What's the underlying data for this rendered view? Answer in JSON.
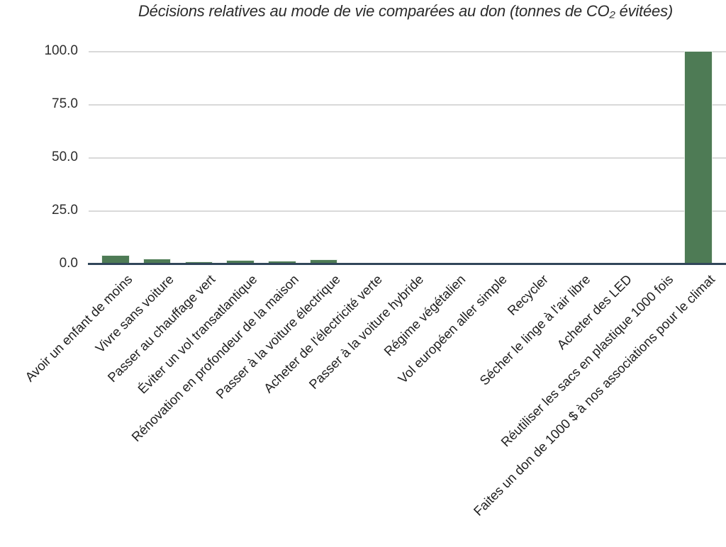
{
  "title": "Décisions relatives au mode de vie comparées au don (tonnes de CO₂ évitées)",
  "colors": {
    "bar": "#4e7b55",
    "bar_outline": "#e8f0e8",
    "axis_line": "#31465a",
    "gridline": "#d9d9d9",
    "title_text": "#2b2b2b",
    "tick_text": "#2e2e2e",
    "label_text": "#1e1e1e",
    "background": "#ffffff"
  },
  "y_axis": {
    "ticks": [
      {
        "label": "100.0",
        "value": 100
      },
      {
        "label": "75.0",
        "value": 75
      },
      {
        "label": "50.0",
        "value": 50
      },
      {
        "label": "25.0",
        "value": 25
      },
      {
        "label": "0.0",
        "value": 0
      }
    ]
  },
  "chart_data": {
    "type": "bar",
    "title": "Décisions relatives au mode de vie comparées au don (tonnes de CO₂ évitées)",
    "categories": [
      "Avoir un enfant de moins",
      "Vivre sans voiture",
      "Passer au chauffage vert",
      "Éviter un vol transatlantique",
      "Rénovation en profondeur de la maison",
      "Passer à la voiture électrique",
      "Acheter de l'électricité verte",
      "Passer à la voiture hybride",
      "Régime végétalien",
      "Vol européen aller simple",
      "Recycler",
      "Sécher le linge à l'air libre",
      "Acheter des LED",
      "Réutiliser les sacs en plastique 1000 fois",
      "Faites un don de 1000 $ à nos associations pour le climat"
    ],
    "values": [
      4.0,
      2.4,
      1.0,
      1.6,
      1.3,
      2.0,
      0.1,
      0.1,
      0.2,
      0.2,
      0.2,
      0.1,
      0.1,
      0.0,
      100.0
    ],
    "xlabel": "",
    "ylabel": "tonnes de CO₂ évitées",
    "ylim": [
      0,
      100
    ],
    "yticks": [
      0,
      25,
      50,
      75,
      100
    ],
    "grid": true,
    "legend": false,
    "bar_color": "#4e7b55",
    "tick_rotation_deg": 45
  }
}
